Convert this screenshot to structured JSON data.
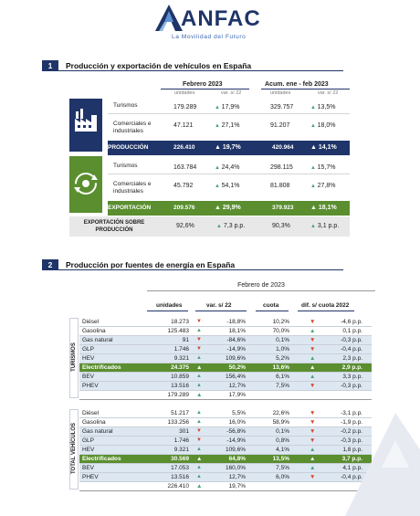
{
  "logo": {
    "name": "ANFAC",
    "tagline": "La Movilidad del Futuro"
  },
  "section1": {
    "number": "1",
    "title": "Producción y exportación de vehículos en España",
    "period1": "Febrero 2023",
    "period2": "Acum. ene - feb 2023",
    "sub_units": "unidades",
    "sub_var": "var. s/ 22",
    "production_rows": [
      {
        "label": "Turismos",
        "v1": "179.289",
        "c1": "17,9%",
        "v2": "329.757",
        "c2": "13,5%"
      },
      {
        "label": "Comerciales e industriales",
        "v1": "47.121",
        "c1": "27,1%",
        "v2": "91.207",
        "c2": "18,0%"
      }
    ],
    "production_total": {
      "label": "PRODUCCIÓN",
      "v1": "226.410",
      "c1": "19,7%",
      "v2": "420.964",
      "c2": "14,1%"
    },
    "export_rows": [
      {
        "label": "Turismos",
        "v1": "163.784",
        "c1": "24,4%",
        "v2": "298.115",
        "c2": "15,7%"
      },
      {
        "label": "Comerciales e industriales",
        "v1": "45.792",
        "c1": "54,1%",
        "v2": "81.808",
        "c2": "27,8%"
      }
    ],
    "export_total": {
      "label": "EXPORTACIÓN",
      "v1": "209.576",
      "c1": "29,9%",
      "v2": "379.923",
      "c2": "18,1%"
    },
    "export_share": {
      "label": "EXPORTACIÓN SOBRE PRODUCCIÓN",
      "v1": "92,6%",
      "c1": "7,3 p.p.",
      "v2": "90,3%",
      "c2": "3,1 p.p."
    }
  },
  "section2": {
    "number": "2",
    "title": "Producción por fuentes de energía en España",
    "period": "Febrero de 2023",
    "headers": {
      "units": "unidades",
      "var": "var. s/ 22",
      "share": "cuota",
      "diff": "dif. s/ cuota 2022"
    },
    "group1": {
      "label": "TURISMOS",
      "rows": [
        {
          "label": "Diésel",
          "units": "18.273",
          "var": "-18,8%",
          "var_dir": "down",
          "share": "10,2%",
          "diff": "-4,6 p.p.",
          "diff_dir": "down",
          "style": "white"
        },
        {
          "label": "Gasolina",
          "units": "125.483",
          "var": "18,1%",
          "var_dir": "up",
          "share": "70,0%",
          "diff": "0,1 p.p.",
          "diff_dir": "up",
          "style": "white"
        },
        {
          "label": "Gas natural",
          "units": "91",
          "var": "-84,6%",
          "var_dir": "down",
          "share": "0,1%",
          "diff": "-0,3 p.p.",
          "diff_dir": "down",
          "style": "blue"
        },
        {
          "label": "GLP",
          "units": "1.746",
          "var": "-14,9%",
          "var_dir": "down",
          "share": "1,0%",
          "diff": "-0,4 p.p.",
          "diff_dir": "down",
          "style": "blue"
        },
        {
          "label": "HEV",
          "units": "9.321",
          "var": "109,6%",
          "var_dir": "up",
          "share": "5,2%",
          "diff": "2,3 p.p.",
          "diff_dir": "up",
          "style": "blue"
        },
        {
          "label": "Electrificados",
          "units": "24.375",
          "var": "50,2%",
          "var_dir": "up",
          "share": "13,6%",
          "diff": "2,9 p.p.",
          "diff_dir": "up",
          "style": "green"
        },
        {
          "label": "BEV",
          "units": "10.859",
          "var": "156,4%",
          "var_dir": "up",
          "share": "6,1%",
          "diff": "3,3 p.p.",
          "diff_dir": "up",
          "style": "blue"
        },
        {
          "label": "PHEV",
          "units": "13.516",
          "var": "12,7%",
          "var_dir": "up",
          "share": "7,5%",
          "diff": "-0,3 p.p.",
          "diff_dir": "down",
          "style": "blue"
        }
      ],
      "total": {
        "units": "179.289",
        "var": "17,9%",
        "var_dir": "up"
      }
    },
    "group2": {
      "label": "TOTAL VEHÍCULOS",
      "rows": [
        {
          "label": "Diésel",
          "units": "51.217",
          "var": "5,5%",
          "var_dir": "up",
          "share": "22,6%",
          "diff": "-3,1 p.p.",
          "diff_dir": "down",
          "style": "white"
        },
        {
          "label": "Gasolina",
          "units": "133.256",
          "var": "16,0%",
          "var_dir": "up",
          "share": "58,9%",
          "diff": "-1,9 p.p.",
          "diff_dir": "down",
          "style": "white"
        },
        {
          "label": "Gas natural",
          "units": "301",
          "var": "-56,8%",
          "var_dir": "down",
          "share": "0,1%",
          "diff": "-0,2 p.p.",
          "diff_dir": "down",
          "style": "blue"
        },
        {
          "label": "GLP",
          "units": "1.746",
          "var": "-14,9%",
          "var_dir": "down",
          "share": "0,8%",
          "diff": "-0,3 p.p.",
          "diff_dir": "down",
          "style": "blue"
        },
        {
          "label": "HEV",
          "units": "9.321",
          "var": "109,6%",
          "var_dir": "up",
          "share": "4,1%",
          "diff": "1,8 p.p.",
          "diff_dir": "up",
          "style": "blue"
        },
        {
          "label": "Electrificados",
          "units": "30.569",
          "var": "64,8%",
          "var_dir": "up",
          "share": "13,5%",
          "diff": "3,7 p.p.",
          "diff_dir": "up",
          "style": "green"
        },
        {
          "label": "BEV",
          "units": "17.053",
          "var": "160,0%",
          "var_dir": "up",
          "share": "7,5%",
          "diff": "4,1 p.p.",
          "diff_dir": "up",
          "style": "blue"
        },
        {
          "label": "PHEV",
          "units": "13.516",
          "var": "12,7%",
          "var_dir": "up",
          "share": "6,0%",
          "diff": "-0,4 p.p.",
          "diff_dir": "down",
          "style": "blue"
        }
      ],
      "total": {
        "units": "226.410",
        "var": "19,7%",
        "var_dir": "up"
      }
    }
  },
  "colors": {
    "navy": "#1f3468",
    "green": "#5a8e2f",
    "up": "#4aa37b",
    "down": "#d2492a",
    "light_blue": "#dde7f2"
  },
  "icons": [
    "factory-icon",
    "export-cycle-icon",
    "anfac-a-logo-icon"
  ]
}
